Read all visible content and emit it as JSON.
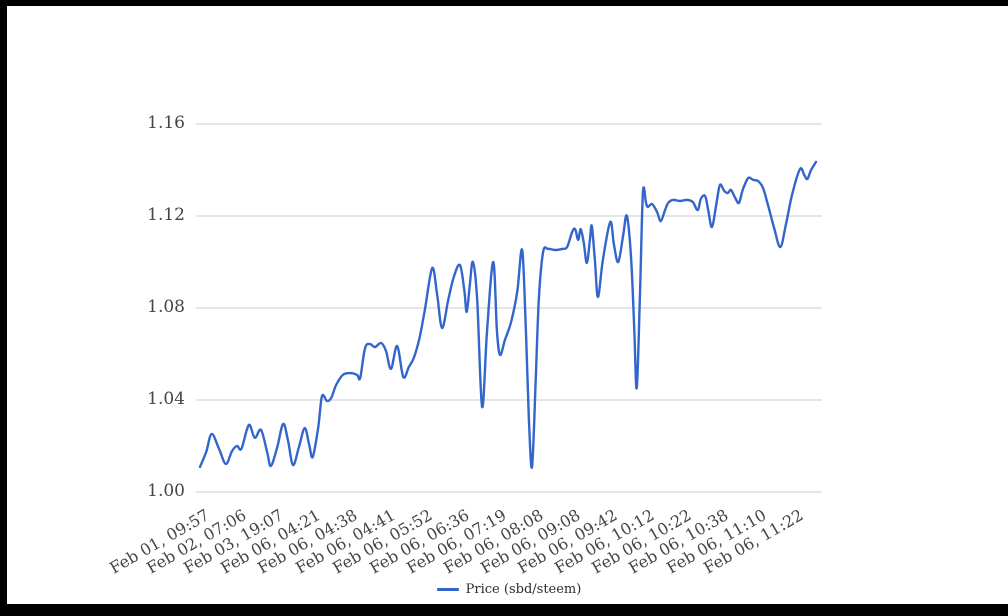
{
  "frame": {
    "border_color": "#000000",
    "background": "#ffffff"
  },
  "legend": {
    "position": "bottom"
  },
  "chart_data": {
    "type": "line",
    "title": "",
    "xlabel": "",
    "ylabel": "",
    "ylim": [
      1.0,
      1.16
    ],
    "grid": true,
    "gridline_color": "#cccccc",
    "axis_label_color": "#454545",
    "y_tick_labels": [
      "1.00",
      "1.04",
      "1.08",
      "1.12",
      "1.16"
    ],
    "x_tick_labels": [
      "Feb 01, 09:57",
      "Feb 02, 07:06",
      "Feb 03, 19:07",
      "Feb 06, 04:21",
      "Feb 06, 04:38",
      "Feb 06, 04:41",
      "Feb 06, 05:52",
      "Feb 06, 06:36",
      "Feb 06, 07:19",
      "Feb 06, 08:08",
      "Feb 06, 09:08",
      "Feb 06, 09:42",
      "Feb 06, 10:12",
      "Feb 06, 10:22",
      "Feb 06, 10:38",
      "Feb 06, 11:10",
      "Feb 06, 11:22"
    ],
    "series": [
      {
        "name": "Price (sbd/steem)",
        "color": "#3366cc",
        "points": [
          [
            0.0,
            1.0109
          ],
          [
            0.01,
            1.0174
          ],
          [
            0.019,
            1.0252
          ],
          [
            0.031,
            1.0187
          ],
          [
            0.042,
            1.0122
          ],
          [
            0.052,
            1.0178
          ],
          [
            0.06,
            1.02
          ],
          [
            0.067,
            1.0187
          ],
          [
            0.076,
            1.027
          ],
          [
            0.081,
            1.0291
          ],
          [
            0.089,
            1.0235
          ],
          [
            0.099,
            1.027
          ],
          [
            0.109,
            1.0174
          ],
          [
            0.115,
            1.0113
          ],
          [
            0.125,
            1.0191
          ],
          [
            0.135,
            1.0296
          ],
          [
            0.143,
            1.0222
          ],
          [
            0.151,
            1.0117
          ],
          [
            0.161,
            1.02
          ],
          [
            0.17,
            1.0278
          ],
          [
            0.177,
            1.0209
          ],
          [
            0.183,
            1.0152
          ],
          [
            0.192,
            1.0283
          ],
          [
            0.198,
            1.0417
          ],
          [
            0.206,
            1.0396
          ],
          [
            0.213,
            1.0409
          ],
          [
            0.221,
            1.0465
          ],
          [
            0.232,
            1.0509
          ],
          [
            0.244,
            1.0517
          ],
          [
            0.255,
            1.0509
          ],
          [
            0.26,
            1.0496
          ],
          [
            0.268,
            1.0626
          ],
          [
            0.276,
            1.0643
          ],
          [
            0.284,
            1.063
          ],
          [
            0.294,
            1.0648
          ],
          [
            0.302,
            1.0613
          ],
          [
            0.31,
            1.0535
          ],
          [
            0.32,
            1.0635
          ],
          [
            0.33,
            1.05
          ],
          [
            0.339,
            1.0543
          ],
          [
            0.347,
            1.0583
          ],
          [
            0.356,
            1.0665
          ],
          [
            0.365,
            1.0791
          ],
          [
            0.377,
            1.0974
          ],
          [
            0.385,
            1.0857
          ],
          [
            0.393,
            1.0713
          ],
          [
            0.403,
            1.0835
          ],
          [
            0.412,
            1.0935
          ],
          [
            0.422,
            1.0987
          ],
          [
            0.429,
            1.0878
          ],
          [
            0.433,
            1.0783
          ],
          [
            0.438,
            1.09
          ],
          [
            0.443,
            1.1
          ],
          [
            0.45,
            1.0835
          ],
          [
            0.458,
            1.037
          ],
          [
            0.466,
            1.0704
          ],
          [
            0.476,
            1.1
          ],
          [
            0.482,
            1.0704
          ],
          [
            0.487,
            1.0596
          ],
          [
            0.495,
            1.0661
          ],
          [
            0.505,
            1.0739
          ],
          [
            0.515,
            1.087
          ],
          [
            0.523,
            1.1052
          ],
          [
            0.529,
            1.0704
          ],
          [
            0.534,
            1.0313
          ],
          [
            0.539,
            1.0109
          ],
          [
            0.545,
            1.0487
          ],
          [
            0.55,
            1.0835
          ],
          [
            0.557,
            1.1043
          ],
          [
            0.565,
            1.1057
          ],
          [
            0.576,
            1.1052
          ],
          [
            0.588,
            1.1057
          ],
          [
            0.596,
            1.1065
          ],
          [
            0.604,
            1.113
          ],
          [
            0.609,
            1.1143
          ],
          [
            0.614,
            1.1096
          ],
          [
            0.618,
            1.1143
          ],
          [
            0.623,
            1.1083
          ],
          [
            0.628,
            1.0996
          ],
          [
            0.633,
            1.1096
          ],
          [
            0.636,
            1.1157
          ],
          [
            0.641,
            1.1009
          ],
          [
            0.646,
            1.0848
          ],
          [
            0.654,
            1.1009
          ],
          [
            0.666,
            1.1174
          ],
          [
            0.672,
            1.1074
          ],
          [
            0.679,
            1.1
          ],
          [
            0.687,
            1.1117
          ],
          [
            0.693,
            1.12
          ],
          [
            0.7,
            1.1009
          ],
          [
            0.705,
            1.0704
          ],
          [
            0.709,
            1.0452
          ],
          [
            0.714,
            1.0835
          ],
          [
            0.719,
            1.13
          ],
          [
            0.724,
            1.1257
          ],
          [
            0.727,
            1.1239
          ],
          [
            0.734,
            1.1252
          ],
          [
            0.742,
            1.1217
          ],
          [
            0.748,
            1.1178
          ],
          [
            0.755,
            1.1226
          ],
          [
            0.76,
            1.1257
          ],
          [
            0.768,
            1.127
          ],
          [
            0.779,
            1.1265
          ],
          [
            0.791,
            1.127
          ],
          [
            0.8,
            1.1261
          ],
          [
            0.808,
            1.1226
          ],
          [
            0.813,
            1.1274
          ],
          [
            0.82,
            1.1287
          ],
          [
            0.825,
            1.1226
          ],
          [
            0.831,
            1.1152
          ],
          [
            0.838,
            1.1248
          ],
          [
            0.844,
            1.1335
          ],
          [
            0.851,
            1.1309
          ],
          [
            0.857,
            1.13
          ],
          [
            0.862,
            1.1313
          ],
          [
            0.869,
            1.1278
          ],
          [
            0.875,
            1.1257
          ],
          [
            0.881,
            1.1313
          ],
          [
            0.89,
            1.1365
          ],
          [
            0.898,
            1.1357
          ],
          [
            0.906,
            1.1352
          ],
          [
            0.914,
            1.1322
          ],
          [
            0.922,
            1.1248
          ],
          [
            0.932,
            1.1148
          ],
          [
            0.942,
            1.1065
          ],
          [
            0.951,
            1.1161
          ],
          [
            0.961,
            1.1291
          ],
          [
            0.974,
            1.1404
          ],
          [
            0.981,
            1.1378
          ],
          [
            0.986,
            1.1361
          ],
          [
            0.992,
            1.14
          ],
          [
            1.0,
            1.1435
          ]
        ]
      }
    ],
    "legend_position": "bottom"
  }
}
